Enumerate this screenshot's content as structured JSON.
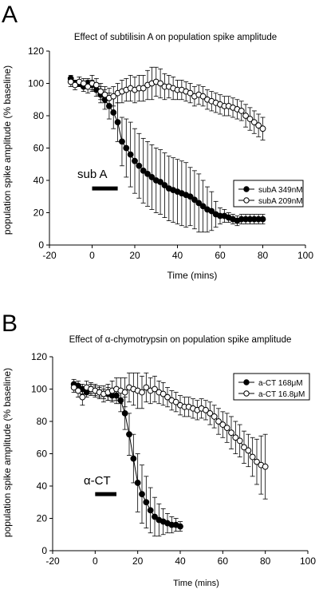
{
  "chart_data": [
    {
      "panel_letter": "A",
      "type": "scatter",
      "title": "Effect of subtilisin A on population spike amplitude",
      "xlabel": "Time (mins)",
      "ylabel": "population spike amplitude (% baseline)",
      "xlim": [
        -20,
        100
      ],
      "ylim": [
        0,
        120
      ],
      "xticks": [
        -20,
        0,
        20,
        40,
        60,
        80,
        100
      ],
      "yticks": [
        0,
        20,
        40,
        60,
        80,
        100,
        120
      ],
      "annotation": "sub A",
      "bar_x": [
        0,
        12
      ],
      "bar_y": 35,
      "legend_position": "right",
      "series": [
        {
          "name": "subA 349nM",
          "marker": "filled",
          "x": [
            -10,
            -8,
            -6,
            -4,
            -2,
            0,
            2,
            4,
            6,
            8,
            10,
            12,
            14,
            16,
            18,
            20,
            22,
            24,
            26,
            28,
            30,
            32,
            34,
            36,
            38,
            40,
            42,
            44,
            46,
            48,
            50,
            52,
            54,
            56,
            58,
            60,
            62,
            64,
            66,
            68,
            70,
            72,
            74,
            76,
            78,
            80
          ],
          "y": [
            103,
            100,
            100,
            98,
            100,
            99,
            96,
            93,
            90,
            86,
            82,
            76,
            64,
            60,
            56,
            52,
            49,
            46,
            44,
            42,
            40,
            39,
            37,
            35,
            34,
            33,
            32,
            31,
            30,
            28,
            26,
            24,
            22,
            21,
            19,
            18,
            18,
            17,
            16,
            15,
            16,
            16,
            16,
            16,
            16,
            16
          ],
          "err": [
            2,
            2,
            2,
            3,
            3,
            3,
            4,
            5,
            6,
            8,
            10,
            12,
            15,
            18,
            20,
            20,
            20,
            20,
            20,
            20,
            20,
            20,
            20,
            20,
            20,
            20,
            20,
            20,
            18,
            18,
            18,
            16,
            14,
            12,
            8,
            5,
            4,
            3,
            3,
            3,
            3,
            3,
            3,
            3,
            3,
            3
          ]
        },
        {
          "name": "subA 209nM",
          "marker": "open",
          "x": [
            -10,
            -8,
            -6,
            -4,
            -2,
            0,
            2,
            4,
            6,
            8,
            10,
            12,
            14,
            16,
            18,
            20,
            22,
            24,
            26,
            28,
            30,
            32,
            34,
            36,
            38,
            40,
            42,
            44,
            46,
            48,
            50,
            52,
            54,
            56,
            58,
            60,
            62,
            64,
            66,
            68,
            70,
            72,
            74,
            76,
            78,
            80
          ],
          "y": [
            101,
            99,
            101,
            100,
            98,
            100,
            99,
            95,
            93,
            91,
            92,
            94,
            95,
            96,
            97,
            96,
            97,
            97,
            99,
            100,
            101,
            100,
            98,
            98,
            97,
            96,
            96,
            95,
            94,
            92,
            93,
            92,
            90,
            89,
            88,
            87,
            86,
            86,
            85,
            84,
            83,
            80,
            78,
            76,
            74,
            72
          ],
          "err": [
            3,
            3,
            3,
            3,
            4,
            5,
            4,
            5,
            5,
            6,
            6,
            6,
            7,
            7,
            8,
            8,
            8,
            8,
            9,
            10,
            9,
            9,
            8,
            7,
            7,
            6,
            6,
            6,
            6,
            6,
            6,
            6,
            6,
            6,
            6,
            6,
            6,
            6,
            6,
            6,
            6,
            7,
            7,
            7,
            7,
            7
          ]
        }
      ]
    },
    {
      "panel_letter": "B",
      "type": "scatter",
      "title": "Effect of α-chymotrypsin on population spike amplitude",
      "xlabel": "Time (mins)",
      "ylabel": "population spike amplitude (% baseline)",
      "xlim": [
        -20,
        100
      ],
      "ylim": [
        0,
        120
      ],
      "xticks": [
        -20,
        0,
        20,
        40,
        60,
        80,
        100
      ],
      "yticks": [
        0,
        20,
        40,
        60,
        80,
        100,
        120
      ],
      "annotation": "α-CT",
      "bar_x": [
        0,
        10
      ],
      "bar_y": 35,
      "legend_position": "top-right",
      "series": [
        {
          "name": "a-CT 168μM",
          "marker": "filled",
          "x": [
            -10,
            -8,
            -6,
            -4,
            -2,
            0,
            2,
            4,
            6,
            8,
            10,
            12,
            14,
            16,
            18,
            20,
            22,
            24,
            26,
            28,
            30,
            32,
            34,
            36,
            38,
            40
          ],
          "y": [
            103,
            102,
            100,
            98,
            100,
            99,
            98,
            97,
            97,
            96,
            96,
            93,
            85,
            72,
            57,
            42,
            35,
            30,
            25,
            21,
            19,
            18,
            17,
            16,
            16,
            15
          ],
          "err": [
            3,
            3,
            3,
            3,
            3,
            3,
            3,
            3,
            4,
            4,
            5,
            7,
            10,
            13,
            15,
            18,
            18,
            16,
            14,
            12,
            10,
            8,
            6,
            5,
            4,
            3
          ]
        },
        {
          "name": "a-CT 16.8μM",
          "marker": "open",
          "x": [
            -10,
            -8,
            -6,
            -4,
            -2,
            0,
            2,
            4,
            6,
            8,
            10,
            12,
            14,
            16,
            18,
            20,
            22,
            24,
            26,
            28,
            30,
            32,
            34,
            36,
            38,
            40,
            42,
            44,
            46,
            48,
            50,
            52,
            54,
            56,
            58,
            60,
            62,
            64,
            66,
            68,
            70,
            72,
            74,
            76,
            78,
            80
          ],
          "y": [
            101,
            99,
            95,
            101,
            100,
            99,
            98,
            97,
            98,
            99,
            100,
            99,
            98,
            101,
            100,
            99,
            98,
            101,
            99,
            100,
            98,
            97,
            95,
            93,
            92,
            90,
            89,
            89,
            88,
            87,
            88,
            87,
            85,
            83,
            80,
            78,
            76,
            73,
            70,
            68,
            64,
            62,
            58,
            55,
            53,
            52
          ],
          "err": [
            3,
            4,
            5,
            4,
            4,
            4,
            4,
            5,
            5,
            6,
            7,
            8,
            9,
            9,
            10,
            11,
            10,
            9,
            8,
            8,
            7,
            7,
            6,
            6,
            6,
            6,
            6,
            6,
            6,
            6,
            6,
            6,
            7,
            7,
            8,
            8,
            9,
            10,
            10,
            10,
            10,
            10,
            12,
            14,
            18,
            20
          ]
        }
      ]
    }
  ]
}
